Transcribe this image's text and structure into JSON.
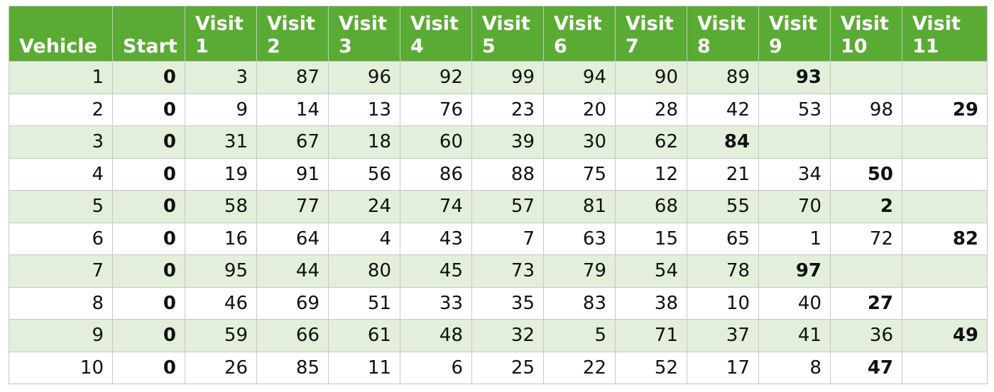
{
  "table": {
    "headers": [
      [
        "",
        "Vehicle"
      ],
      [
        "",
        "Start"
      ],
      [
        "Visit",
        "1"
      ],
      [
        "Visit",
        "2"
      ],
      [
        "Visit",
        "3"
      ],
      [
        "Visit",
        "4"
      ],
      [
        "Visit",
        "5"
      ],
      [
        "Visit",
        "6"
      ],
      [
        "Visit",
        "7"
      ],
      [
        "Visit",
        "8"
      ],
      [
        "Visit",
        "9"
      ],
      [
        "Visit",
        "10"
      ],
      [
        "Visit",
        "11"
      ]
    ],
    "rows": [
      [
        "1",
        "0",
        "3",
        "87",
        "96",
        "92",
        "99",
        "94",
        "90",
        "89",
        "93",
        "",
        ""
      ],
      [
        "2",
        "0",
        "9",
        "14",
        "13",
        "76",
        "23",
        "20",
        "28",
        "42",
        "53",
        "98",
        "29"
      ],
      [
        "3",
        "0",
        "31",
        "67",
        "18",
        "60",
        "39",
        "30",
        "62",
        "84",
        "",
        "",
        ""
      ],
      [
        "4",
        "0",
        "19",
        "91",
        "56",
        "86",
        "88",
        "75",
        "12",
        "21",
        "34",
        "50",
        ""
      ],
      [
        "5",
        "0",
        "58",
        "77",
        "24",
        "74",
        "57",
        "81",
        "68",
        "55",
        "70",
        "2",
        ""
      ],
      [
        "6",
        "0",
        "16",
        "64",
        "4",
        "43",
        "7",
        "63",
        "15",
        "65",
        "1",
        "72",
        "82"
      ],
      [
        "7",
        "0",
        "95",
        "44",
        "80",
        "45",
        "73",
        "79",
        "54",
        "78",
        "97",
        "",
        ""
      ],
      [
        "8",
        "0",
        "46",
        "69",
        "51",
        "33",
        "35",
        "83",
        "38",
        "10",
        "40",
        "27",
        ""
      ],
      [
        "9",
        "0",
        "59",
        "66",
        "61",
        "48",
        "32",
        "5",
        "71",
        "37",
        "41",
        "36",
        "49"
      ],
      [
        "10",
        "0",
        "26",
        "85",
        "11",
        "6",
        "25",
        "22",
        "52",
        "17",
        "8",
        "47",
        ""
      ]
    ],
    "bold_cells": [
      [
        0,
        1
      ],
      [
        0,
        10
      ],
      [
        1,
        1
      ],
      [
        1,
        12
      ],
      [
        2,
        1
      ],
      [
        2,
        9
      ],
      [
        3,
        1
      ],
      [
        3,
        11
      ],
      [
        4,
        1
      ],
      [
        4,
        11
      ],
      [
        5,
        1
      ],
      [
        5,
        12
      ],
      [
        6,
        1
      ],
      [
        6,
        10
      ],
      [
        7,
        1
      ],
      [
        7,
        11
      ],
      [
        8,
        1
      ],
      [
        8,
        12
      ],
      [
        9,
        1
      ],
      [
        9,
        11
      ]
    ],
    "colors": {
      "header_bg": "#5aab33",
      "header_text": "#ffffff",
      "row_shade": "#e2efda",
      "border": "#c8c8c8"
    }
  }
}
